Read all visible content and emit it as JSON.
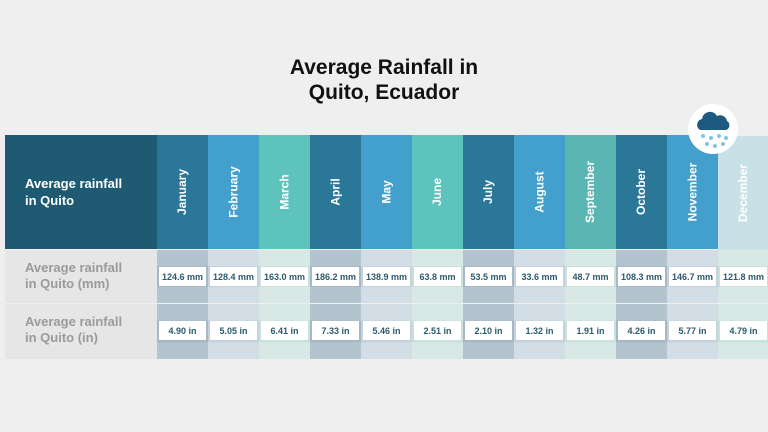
{
  "chart_data": {
    "type": "table",
    "title": "Average Rainfall in Quito, Ecuador",
    "title_lines": [
      "Average Rainfall in",
      "Quito, Ecuador"
    ],
    "header_label": "Average rainfall in Quito",
    "header_lines": [
      "Average rainfall",
      "in Quito"
    ],
    "row_labels": [
      [
        "Average rainfall",
        "in Quito (mm)"
      ],
      [
        "Average rainfall",
        "in Quito (in)"
      ]
    ],
    "categories": [
      "January",
      "February",
      "March",
      "April",
      "May",
      "June",
      "July",
      "August",
      "September",
      "October",
      "November",
      "December"
    ],
    "series": [
      {
        "name": "Average rainfall in Quito (mm)",
        "values": [
          124.6,
          128.4,
          163.0,
          186.2,
          138.9,
          63.8,
          53.5,
          33.6,
          48.7,
          108.3,
          146.7,
          121.8
        ],
        "display": [
          "124.6 mm",
          "128.4 mm",
          "163.0 mm",
          "186.2 mm",
          "138.9 mm",
          "63.8 mm",
          "53.5 mm",
          "33.6 mm",
          "48.7 mm",
          "108.3 mm",
          "146.7 mm",
          "121.8 mm"
        ]
      },
      {
        "name": "Average rainfall in Quito (in)",
        "values": [
          4.9,
          5.05,
          6.41,
          7.33,
          5.46,
          2.51,
          2.1,
          1.32,
          1.91,
          4.26,
          5.77,
          4.79
        ],
        "display": [
          "4.90 in",
          "5.05 in",
          "6.41 in",
          "7.33 in",
          "5.46 in",
          "2.51 in",
          "2.10 in",
          "1.32 in",
          "1.91 in",
          "4.26 in",
          "5.77 in",
          "4.79 in"
        ]
      }
    ]
  },
  "icon": "rain-cloud-icon",
  "colors": {
    "header_dark": "#2b7798",
    "header_blue": "#43a0cd",
    "header_teal": "#5ec3bd",
    "header_highlight": "#c8e1e6",
    "left_header": "#1e5a72"
  }
}
